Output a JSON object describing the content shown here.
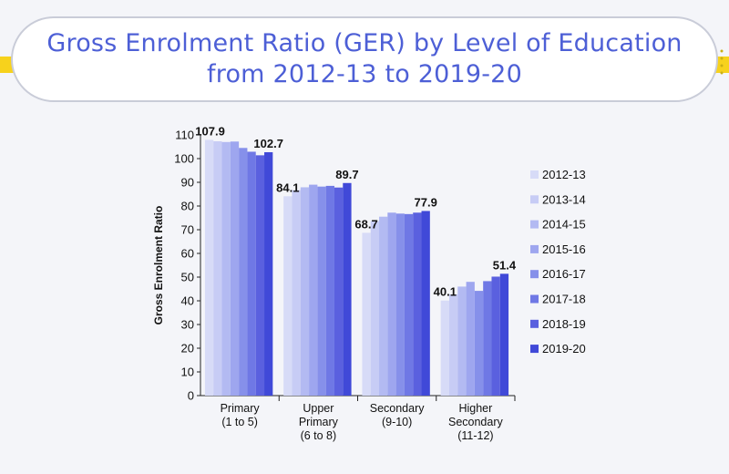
{
  "header": {
    "title_line1": "Gross Enrolment Ratio (GER) by Level of Education",
    "title_line2": "from 2012-13 to 2019-20"
  },
  "colors": {
    "title": "#4d5fd6",
    "band": "#f7d21c",
    "series": [
      "#d7dbf7",
      "#c7ccf5",
      "#b3baf2",
      "#9ea6ef",
      "#8690ea",
      "#6f78e5",
      "#5a60df",
      "#4049d8"
    ]
  },
  "chart_data": {
    "type": "bar",
    "title": "",
    "xlabel": "",
    "ylabel": "Gross Enrolment Ratio",
    "ylim": [
      0,
      110
    ],
    "yticks": [
      0,
      10,
      20,
      30,
      40,
      50,
      60,
      70,
      80,
      90,
      100,
      110
    ],
    "grid": false,
    "legend": "right",
    "categories": [
      [
        "Primary",
        "(1 to 5)"
      ],
      [
        "Upper",
        "Primary",
        "(6 to 8)"
      ],
      [
        "Secondary",
        "(9-10)"
      ],
      [
        "Higher",
        "Secondary",
        "(11-12)"
      ]
    ],
    "series": [
      {
        "name": "2012-13",
        "values": [
          107.9,
          84.1,
          68.7,
          40.1
        ]
      },
      {
        "name": "2013-14",
        "values": [
          107.3,
          86.7,
          73.6,
          42.7
        ]
      },
      {
        "name": "2014-15",
        "values": [
          107.0,
          87.9,
          75.5,
          46.0
        ]
      },
      {
        "name": "2015-16",
        "values": [
          107.2,
          89.0,
          77.2,
          48.0
        ]
      },
      {
        "name": "2016-17",
        "values": [
          104.5,
          88.2,
          76.8,
          44.2
        ]
      },
      {
        "name": "2017-18",
        "values": [
          102.9,
          88.5,
          76.6,
          48.3
        ]
      },
      {
        "name": "2018-19",
        "values": [
          101.4,
          87.8,
          77.2,
          50.2
        ]
      },
      {
        "name": "2019-20",
        "values": [
          102.7,
          89.7,
          77.9,
          51.4
        ]
      }
    ],
    "data_labels": [
      {
        "category": 0,
        "series": 0,
        "text": "107.9"
      },
      {
        "category": 0,
        "series": 7,
        "text": "102.7"
      },
      {
        "category": 1,
        "series": 0,
        "text": "84.1"
      },
      {
        "category": 1,
        "series": 7,
        "text": "89.7"
      },
      {
        "category": 2,
        "series": 0,
        "text": "68.7"
      },
      {
        "category": 2,
        "series": 7,
        "text": "77.9"
      },
      {
        "category": 3,
        "series": 0,
        "text": "40.1"
      },
      {
        "category": 3,
        "series": 7,
        "text": "51.4"
      }
    ]
  }
}
